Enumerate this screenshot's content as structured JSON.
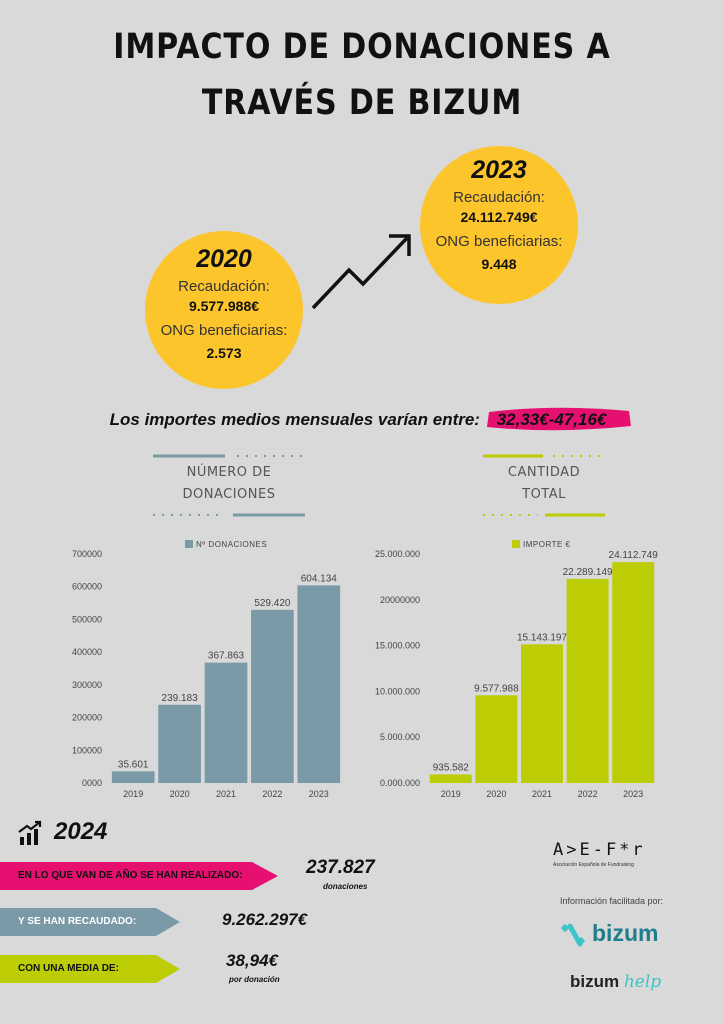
{
  "title": {
    "line1": "IMPACTO DE  DONACIONES A",
    "line2": "TRAVÉS DE BIZUM"
  },
  "y2020": {
    "year": "2020",
    "rec_label": "Recaudación:",
    "rec_value": "9.577.988€",
    "ong_label": "ONG beneficiarias:",
    "ong_value": "2.573"
  },
  "y2023": {
    "year": "2023",
    "rec_label": "Recaudación:",
    "rec_value": "24.112.749€",
    "ong_label": "ONG beneficiarias:",
    "ong_value": "9.448"
  },
  "avg": {
    "text": "Los importes medios mensuales varían entre:",
    "range": "32,33€-47,16€"
  },
  "colors": {
    "yellow": "#fdc52c",
    "bluegray": "#7a9aa8",
    "lime": "#bccd05",
    "magenta": "#e5106f"
  },
  "left_section": {
    "line1": "NÚMERO DE",
    "line2": "DONACIONES"
  },
  "right_section": {
    "line1": "CANTIDAD",
    "line2": "TOTAL"
  },
  "chart_data": [
    {
      "type": "bar",
      "categories": [
        "2019",
        "2020",
        "2021",
        "2022",
        "2023"
      ],
      "series": [
        {
          "name": "Nº DONACIONES",
          "values": [
            35601,
            239183,
            367863,
            529420,
            604134
          ]
        }
      ],
      "data_labels": [
        "35.601",
        "239.183",
        "367.863",
        "529.420",
        "604.134"
      ],
      "yticks": [
        "0000",
        "100000",
        "200000",
        "300000",
        "400000",
        "500000",
        "600000",
        "700000"
      ],
      "ylim": [
        0,
        700000
      ],
      "legend": "top"
    },
    {
      "type": "bar",
      "categories": [
        "2019",
        "2020",
        "2021",
        "2022",
        "2023"
      ],
      "series": [
        {
          "name": "IMPORTE €",
          "values": [
            935582,
            9577988,
            15143197,
            22289149,
            24112749
          ]
        }
      ],
      "data_labels": [
        "935.582",
        "9.577.988",
        "15.143.197",
        "22.289.149",
        "24.112.749"
      ],
      "yticks": [
        "0.000.000",
        "5.000.000",
        "10.000.000",
        "15.000.000",
        "20000000",
        "25.000.000"
      ],
      "ylim": [
        0,
        25000000
      ],
      "legend": "top"
    }
  ],
  "y2024": {
    "year": "2024",
    "row1_label": "EN LO QUE VAN DE AÑO SE HAN REALIZADO:",
    "row1_value": "237.827",
    "row1_sub": "donaciones",
    "row2_label": "Y SE HAN RECAUDADO:",
    "row2_value": "9.262.297€",
    "row3_label": "CON UNA MEDIA DE:",
    "row3_value": "38,94€",
    "row3_sub": "por donación"
  },
  "aefr": {
    "logo": "A>E-F*r",
    "sub": "Asociación Española de Fundraising"
  },
  "info": "Información facilitada por:",
  "bizum": "bizum",
  "bizumhelp": {
    "a": "bizum",
    "b": "help"
  }
}
